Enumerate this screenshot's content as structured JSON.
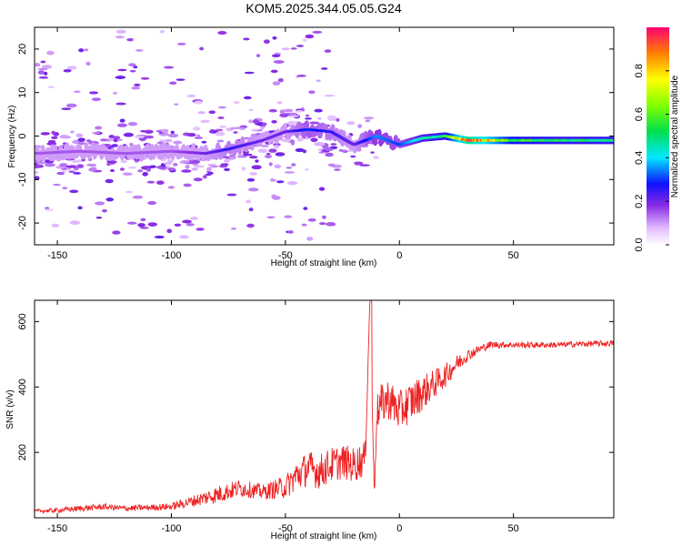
{
  "title": "KOM5.2025.344.05.05.G24",
  "chart_data": [
    {
      "type": "heatmap",
      "xlabel": "Height of straight line (km)",
      "ylabel": "Frequency (Hz)",
      "xlim": [
        -160,
        94
      ],
      "ylim": [
        -25,
        25
      ],
      "xticks": [
        -150,
        -100,
        -50,
        0,
        50
      ],
      "yticks": [
        -20,
        -10,
        0,
        10,
        20
      ],
      "colorbar": {
        "label": "Normalized spectral amplitude",
        "range": [
          0.0,
          1.0
        ],
        "ticks": [
          0.0,
          0.2,
          0.4,
          0.6,
          0.8
        ]
      },
      "ridge": {
        "description": "dominant frequency ridge (approx.)",
        "x": [
          -160,
          -140,
          -120,
          -100,
          -85,
          -75,
          -60,
          -50,
          -40,
          -30,
          -20,
          -10,
          0,
          10,
          20,
          30,
          50,
          70,
          94
        ],
        "y": [
          -4,
          -3.5,
          -4,
          -3.5,
          -4,
          -3,
          -1,
          1,
          1.5,
          1,
          -2,
          0,
          -2,
          -0.5,
          0,
          -1,
          -1,
          -1,
          -1
        ],
        "amplitude": [
          0.15,
          0.15,
          0.15,
          0.15,
          0.2,
          0.25,
          0.2,
          0.2,
          0.3,
          0.25,
          0.2,
          0.35,
          0.3,
          0.45,
          0.5,
          0.95,
          0.55,
          0.5,
          0.5
        ]
      }
    },
    {
      "type": "line",
      "xlabel": "Height of straight line (km)",
      "ylabel": "SNR (v/v)",
      "xlim": [
        -160,
        94
      ],
      "ylim": [
        0,
        665
      ],
      "xticks": [
        -150,
        -100,
        -50,
        0,
        50
      ],
      "yticks": [
        200,
        400,
        600
      ],
      "color": "#ee2222",
      "series": [
        {
          "name": "SNR",
          "x": [
            -160,
            -150,
            -140,
            -130,
            -120,
            -110,
            -100,
            -90,
            -80,
            -70,
            -60,
            -50,
            -45,
            -40,
            -35,
            -30,
            -25,
            -20,
            -15,
            -13,
            -11,
            -10,
            -8,
            -5,
            0,
            5,
            10,
            15,
            20,
            25,
            30,
            35,
            40,
            50,
            60,
            70,
            80,
            94
          ],
          "y": [
            18,
            20,
            25,
            30,
            25,
            28,
            30,
            45,
            60,
            80,
            70,
            80,
            110,
            130,
            120,
            140,
            150,
            140,
            160,
            660,
            60,
            300,
            320,
            340,
            300,
            330,
            360,
            390,
            420,
            460,
            490,
            510,
            525,
            525,
            525,
            525,
            528,
            530
          ],
          "noise": [
            6,
            8,
            10,
            10,
            10,
            10,
            12,
            20,
            30,
            30,
            25,
            40,
            55,
            60,
            60,
            60,
            60,
            60,
            60,
            0,
            20,
            60,
            70,
            70,
            70,
            70,
            60,
            50,
            40,
            30,
            20,
            15,
            12,
            10,
            10,
            10,
            10,
            10
          ]
        }
      ]
    }
  ]
}
